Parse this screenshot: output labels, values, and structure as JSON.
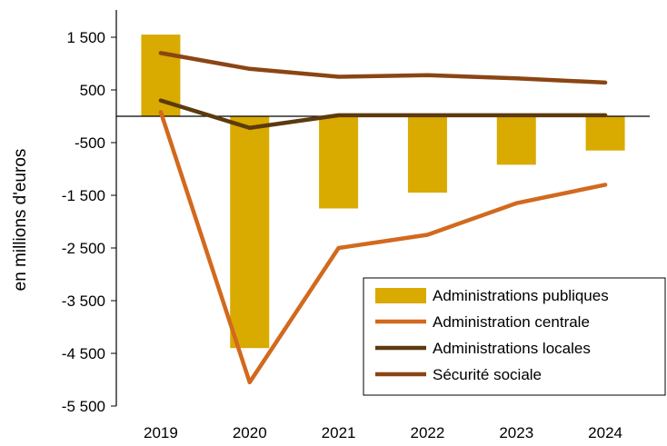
{
  "chart_data": {
    "type": "bar",
    "categories": [
      "2019",
      "2020",
      "2021",
      "2022",
      "2023",
      "2024"
    ],
    "title": "",
    "xlabel": "",
    "ylabel": "en millions d'euros",
    "ylim": [
      -5500,
      1500
    ],
    "yticks": [
      1500,
      500,
      -500,
      -1500,
      -2500,
      -3500,
      -4500,
      -5500
    ],
    "ytick_labels": [
      "1 500",
      "500",
      "-500",
      "-1 500",
      "-2 500",
      "-3 500",
      "-4 500",
      "-5 500"
    ],
    "grid": false,
    "legend_position": "bottom-right",
    "series": [
      {
        "name": "Administrations publiques",
        "type": "bar",
        "color": "#D9AA00",
        "values": [
          1550,
          -4400,
          -1750,
          -1450,
          -920,
          -650
        ]
      },
      {
        "name": "Administration centrale",
        "type": "line",
        "color": "#D2691E",
        "values": [
          80,
          -5050,
          -2500,
          -2250,
          -1650,
          -1300
        ]
      },
      {
        "name": "Administrations locales",
        "type": "line",
        "color": "#5C3A0E",
        "values": [
          300,
          -220,
          20,
          20,
          20,
          20
        ]
      },
      {
        "name": "Sécurité sociale",
        "type": "line",
        "color": "#8B4513",
        "values": [
          1200,
          900,
          750,
          780,
          720,
          640
        ]
      }
    ]
  }
}
